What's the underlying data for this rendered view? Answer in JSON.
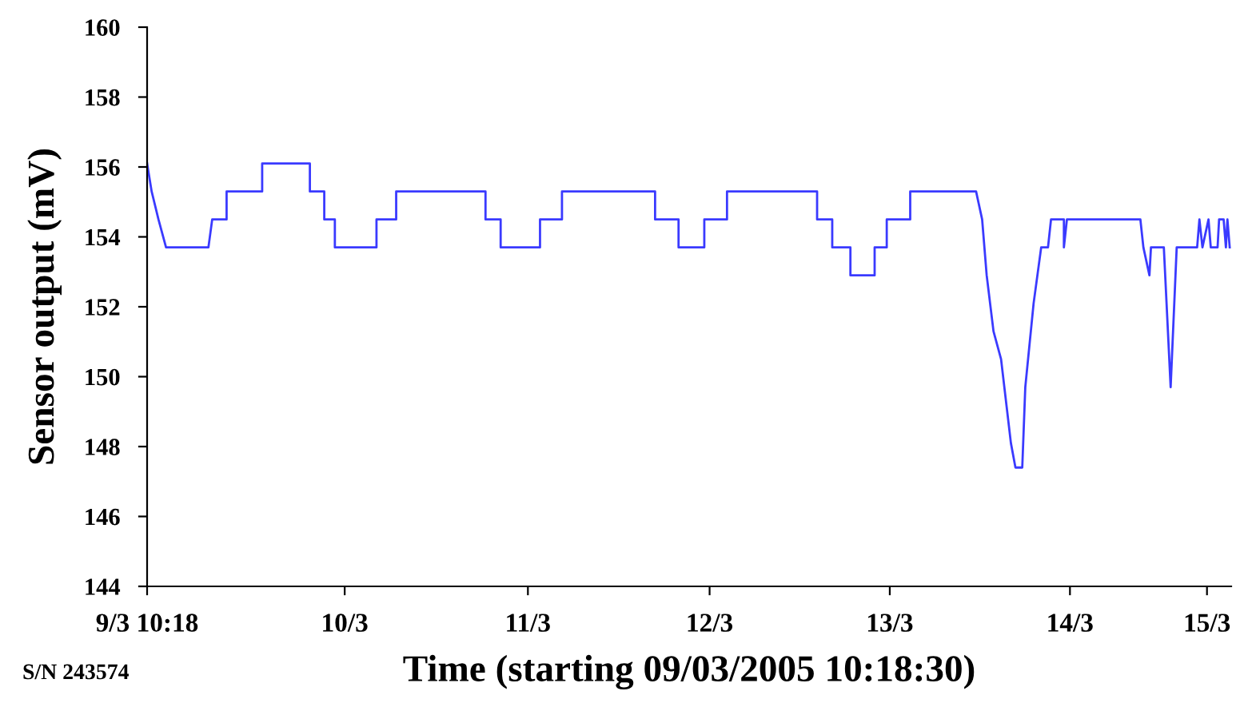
{
  "chart_data": {
    "type": "line",
    "xlabel": "Time (starting 09/03/2005 10:18:30)",
    "ylabel": "Sensor output (mV)",
    "annotations": [
      "S/N 243574"
    ],
    "xlim": [
      "2005-03-09T10:18",
      "2005-03-15T09:30"
    ],
    "ylim": [
      144,
      160
    ],
    "yticks": [
      144,
      146,
      148,
      150,
      152,
      154,
      156,
      158,
      160
    ],
    "xticks": [
      {
        "value": "2005-03-09T10:18",
        "label": "9/3 10:18"
      },
      {
        "value": "2005-03-10T12:24",
        "label": "10/3"
      },
      {
        "value": "2005-03-11T12:36",
        "label": "11/3"
      },
      {
        "value": "2005-03-12T12:36",
        "label": "12/3"
      },
      {
        "value": "2005-03-13T12:24",
        "label": "13/3"
      },
      {
        "value": "2005-03-14T12:12",
        "label": "14/3"
      },
      {
        "value": "2005-03-15T06:18",
        "label": "15/3"
      }
    ],
    "grid": false,
    "legend": false,
    "marker": "none",
    "line_style": "solid",
    "series": [
      {
        "color": "#3a3aff",
        "x": [
          "2005-03-09T10:18",
          "2005-03-09T10:54",
          "2005-03-09T11:48",
          "2005-03-09T12:48",
          "2005-03-09T18:24",
          "2005-03-09T18:54",
          "2005-03-09T20:48",
          "2005-03-09T20:48",
          "2005-03-10T01:30",
          "2005-03-10T01:30",
          "2005-03-10T07:48",
          "2005-03-10T07:48",
          "2005-03-10T09:42",
          "2005-03-10T09:42",
          "2005-03-10T11:06",
          "2005-03-10T11:06",
          "2005-03-10T16:36",
          "2005-03-10T16:36",
          "2005-03-10T19:12",
          "2005-03-10T19:12",
          "2005-03-11T07:00",
          "2005-03-11T07:00",
          "2005-03-11T09:00",
          "2005-03-11T09:00",
          "2005-03-11T14:12",
          "2005-03-11T14:12",
          "2005-03-11T17:06",
          "2005-03-11T17:06",
          "2005-03-12T05:24",
          "2005-03-12T05:24",
          "2005-03-12T08:30",
          "2005-03-12T08:30",
          "2005-03-12T11:54",
          "2005-03-12T11:54",
          "2005-03-12T14:54",
          "2005-03-12T14:54",
          "2005-03-13T02:48",
          "2005-03-13T02:48",
          "2005-03-13T04:48",
          "2005-03-13T04:48",
          "2005-03-13T07:12",
          "2005-03-13T07:12",
          "2005-03-13T10:24",
          "2005-03-13T10:24",
          "2005-03-13T12:00",
          "2005-03-13T12:00",
          "2005-03-13T15:06",
          "2005-03-13T15:06",
          "2005-03-13T23:48",
          "2005-03-14T00:36",
          "2005-03-14T01:12",
          "2005-03-14T02:06",
          "2005-03-14T03:06",
          "2005-03-14T04:24",
          "2005-03-14T05:00",
          "2005-03-14T05:54",
          "2005-03-14T06:18",
          "2005-03-14T07:24",
          "2005-03-14T08:24",
          "2005-03-14T09:18",
          "2005-03-14T09:42",
          "2005-03-14T11:24",
          "2005-03-14T11:24",
          "2005-03-14T11:48",
          "2005-03-14T21:30",
          "2005-03-14T21:54",
          "2005-03-14T22:42",
          "2005-03-14T22:54",
          "2005-03-15T00:36",
          "2005-03-15T01:30",
          "2005-03-15T02:18",
          "2005-03-15T05:00",
          "2005-03-15T05:18",
          "2005-03-15T05:42",
          "2005-03-15T06:30",
          "2005-03-15T06:48",
          "2005-03-15T07:42",
          "2005-03-15T07:54",
          "2005-03-15T08:30",
          "2005-03-15T08:48",
          "2005-03-15T09:00",
          "2005-03-15T09:18"
        ],
        "values": [
          156.1,
          155.3,
          154.5,
          153.7,
          153.7,
          154.5,
          154.5,
          155.3,
          155.3,
          156.1,
          156.1,
          155.3,
          155.3,
          154.5,
          154.5,
          153.7,
          153.7,
          154.5,
          154.5,
          155.3,
          155.3,
          154.5,
          154.5,
          153.7,
          153.7,
          154.5,
          154.5,
          155.3,
          155.3,
          154.5,
          154.5,
          153.7,
          153.7,
          154.5,
          154.5,
          155.3,
          155.3,
          154.5,
          154.5,
          153.7,
          153.7,
          152.9,
          152.9,
          153.7,
          153.7,
          154.5,
          154.5,
          155.3,
          155.3,
          154.5,
          152.9,
          151.3,
          150.5,
          148.1,
          147.4,
          147.4,
          149.7,
          152.1,
          153.7,
          153.7,
          154.5,
          154.5,
          153.7,
          154.5,
          154.5,
          153.7,
          152.9,
          153.7,
          153.7,
          149.7,
          153.7,
          153.7,
          154.5,
          153.7,
          154.5,
          153.7,
          153.7,
          154.5,
          154.5,
          153.7,
          154.5,
          153.7
        ]
      }
    ]
  }
}
